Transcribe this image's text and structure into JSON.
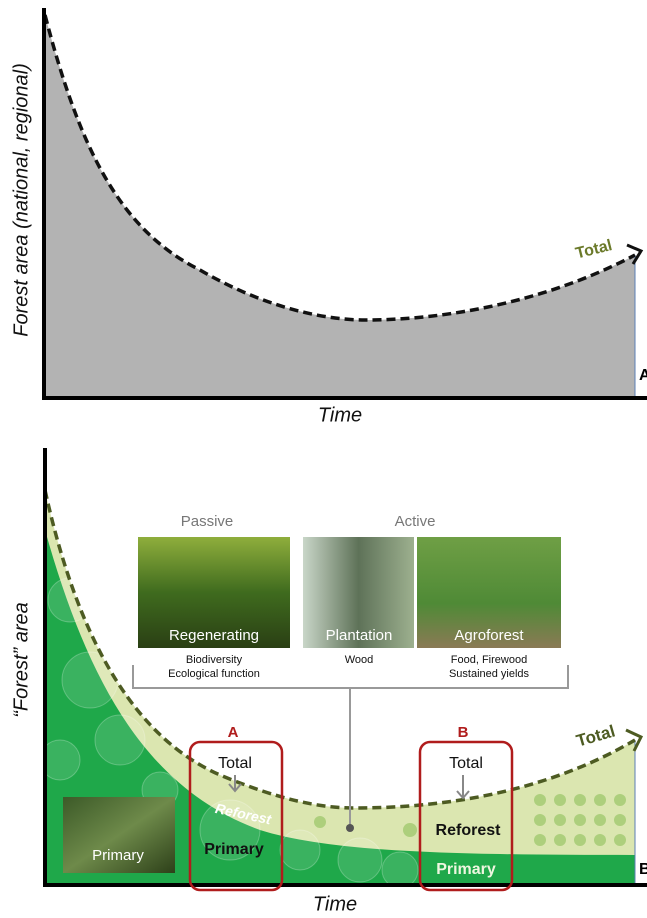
{
  "panel_a": {
    "y_axis_label": "Forest area (national, regional)",
    "x_axis_label": "Time",
    "curve_label": "Total",
    "panel_letter": "A"
  },
  "panel_b": {
    "y_axis_label": "“Forest” area",
    "x_axis_label": "Time",
    "curve_label": "Total",
    "panel_letter": "B",
    "groups": [
      "Passive",
      "Active"
    ],
    "photos": [
      {
        "label": "Regenerating",
        "caption": [
          "Biodiversity",
          "Ecological function"
        ]
      },
      {
        "label": "Plantation",
        "caption": [
          "Wood"
        ]
      },
      {
        "label": "Agroforest",
        "caption": [
          "Food, Firewood",
          "Sustained yields"
        ]
      }
    ],
    "primary_photo": "Primary",
    "reforest_curve_label": "Reforest",
    "boxes": [
      {
        "letter": "A",
        "total": "Total",
        "primary": "Primary"
      },
      {
        "letter": "B",
        "total": "Total",
        "reforest": "Reforest",
        "primary": "Primary"
      }
    ]
  }
}
